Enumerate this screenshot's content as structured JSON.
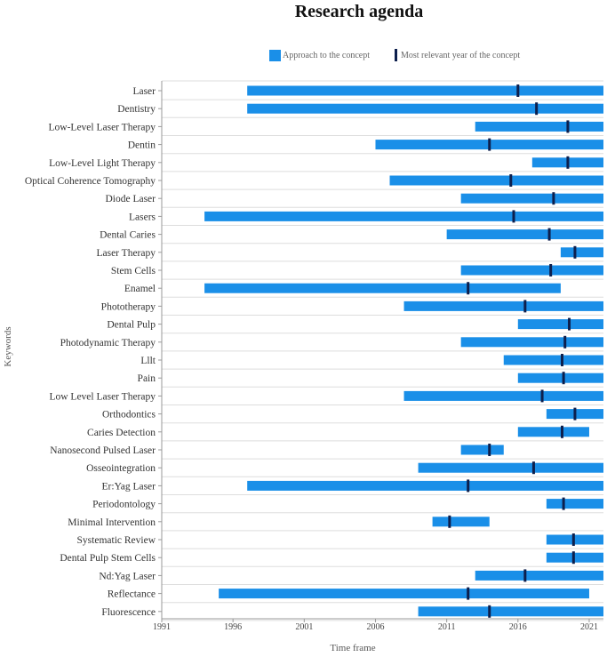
{
  "chart_data": {
    "type": "gantt",
    "title": "Research agenda",
    "xlabel": "Time frame",
    "ylabel": "Keywords",
    "xlim": [
      1991,
      2022
    ],
    "xticks": [
      1991,
      1996,
      2001,
      2006,
      2011,
      2016,
      2021
    ],
    "legend": {
      "position": "top",
      "items": [
        {
          "name": "Approach to the concept",
          "kind": "range"
        },
        {
          "name": "Most relevant year of the concept",
          "kind": "marker"
        }
      ]
    },
    "colors": {
      "range": "#1a8fe8",
      "marker": "#0d1f4d",
      "grid": "#dddddd",
      "axis": "#999999"
    },
    "categories": [
      "Laser",
      "Dentistry",
      "Low-Level Laser Therapy",
      "Dentin",
      "Low-Level Light Therapy",
      "Optical Coherence Tomography",
      "Diode Laser",
      "Lasers",
      "Dental Caries",
      "Laser Therapy",
      "Stem Cells",
      "Enamel",
      "Phototherapy",
      "Dental Pulp",
      "Photodynamic Therapy",
      "Lllt",
      "Pain",
      "Low Level Laser Therapy",
      "Orthodontics",
      "Caries Detection",
      "Nanosecond Pulsed Laser",
      "Osseointegration",
      "Er:Yag Laser",
      "Periodontology",
      "Minimal Intervention",
      "Systematic Review",
      "Dental Pulp Stem Cells",
      "Nd:Yag Laser",
      "Reflectance",
      "Fluorescence"
    ],
    "series": [
      {
        "name": "Approach to the concept",
        "start": [
          1997,
          1997,
          2013,
          2006,
          2017,
          2007,
          2012,
          1994,
          2011,
          2019,
          2012,
          1994,
          2008,
          2016,
          2012,
          2015,
          2016,
          2008,
          2018,
          2016,
          2012,
          2009,
          1997,
          2018,
          2010,
          2018,
          2018,
          2013,
          1995,
          2009
        ],
        "end": [
          2022,
          2022,
          2022,
          2022,
          2022,
          2022,
          2022,
          2022,
          2022,
          2022,
          2022,
          2019,
          2022,
          2022,
          2022,
          2022,
          2022,
          2022,
          2022,
          2021,
          2015,
          2022,
          2022,
          2022,
          2014,
          2022,
          2022,
          2022,
          2021,
          2022
        ]
      },
      {
        "name": "Most relevant year of the concept",
        "values": [
          2016,
          2017.3,
          2019.5,
          2014,
          2019.5,
          2015.5,
          2018.5,
          2015.7,
          2018.2,
          2020,
          2018.3,
          2012.5,
          2016.5,
          2019.6,
          2019.3,
          2019.1,
          2019.2,
          2017.7,
          2020,
          2019.1,
          2014,
          2017.1,
          2012.5,
          2019.2,
          2011.2,
          2019.9,
          2019.9,
          2016.5,
          2012.5,
          2014
        ]
      }
    ]
  }
}
